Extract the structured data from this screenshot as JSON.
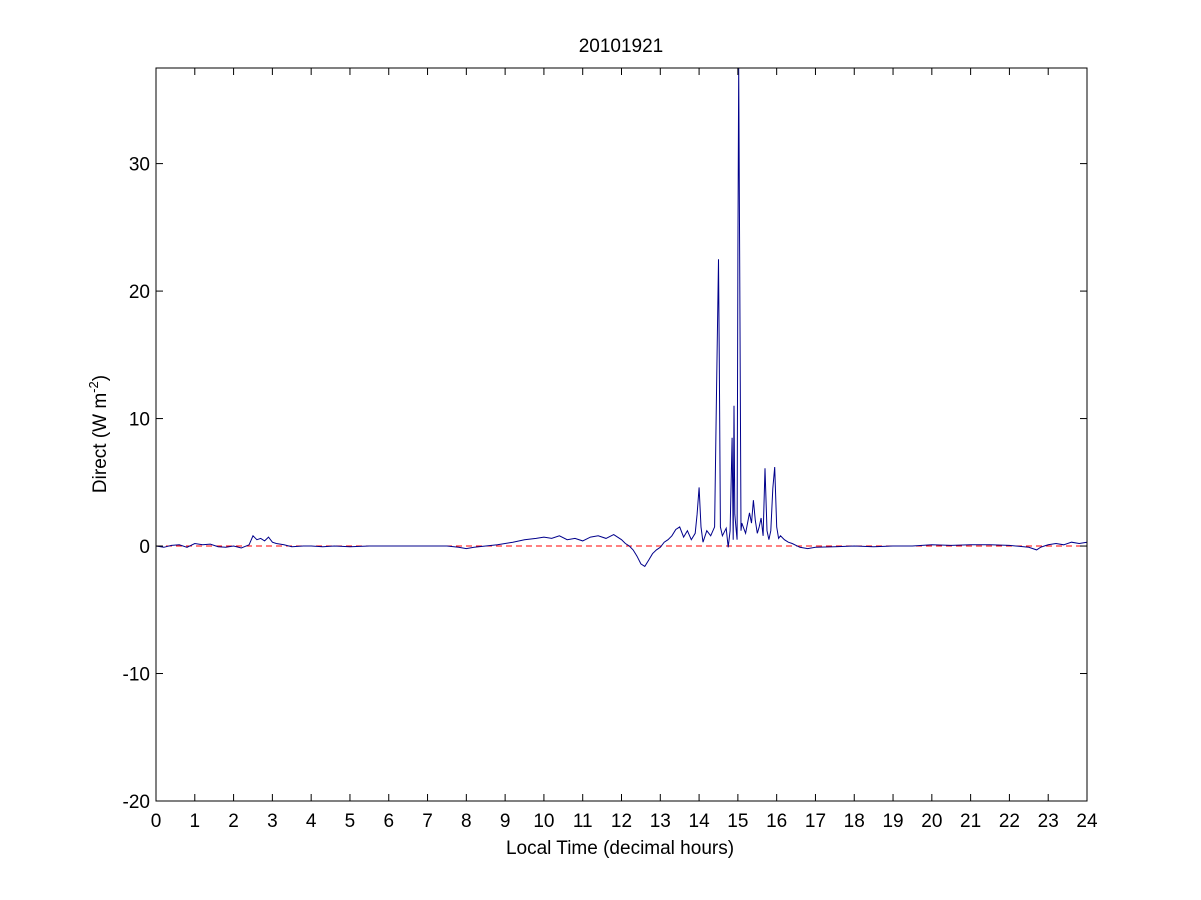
{
  "chart_data": {
    "type": "line",
    "title": "20101921",
    "xlabel": "Local Time (decimal hours)",
    "ylabel": "Direct (W m",
    "ylabel_superscript": "-2",
    "ylabel_suffix": ")",
    "xlim": [
      0,
      24
    ],
    "ylim": [
      -20,
      37.5
    ],
    "xticks": [
      0,
      1,
      2,
      3,
      4,
      5,
      6,
      7,
      8,
      9,
      10,
      11,
      12,
      13,
      14,
      15,
      16,
      17,
      18,
      19,
      20,
      21,
      22,
      23,
      24
    ],
    "yticks": [
      -20,
      -10,
      0,
      10,
      20,
      30
    ],
    "grid": false,
    "reference_line": {
      "y": 0,
      "style": "dashed",
      "color": "#ff0000"
    },
    "series": [
      {
        "color": "#00008b",
        "x": [
          0,
          0.2,
          0.4,
          0.6,
          0.8,
          1.0,
          1.2,
          1.4,
          1.6,
          1.8,
          2.0,
          2.2,
          2.4,
          2.5,
          2.6,
          2.7,
          2.8,
          2.9,
          3.0,
          3.1,
          3.3,
          3.5,
          3.8,
          4.0,
          4.3,
          4.6,
          5.0,
          5.5,
          6.0,
          6.5,
          7.0,
          7.5,
          7.8,
          8.0,
          8.2,
          8.5,
          8.8,
          9.0,
          9.2,
          9.5,
          9.8,
          10.0,
          10.2,
          10.4,
          10.6,
          10.8,
          11.0,
          11.2,
          11.4,
          11.6,
          11.8,
          12.0,
          12.1,
          12.2,
          12.3,
          12.4,
          12.5,
          12.6,
          12.7,
          12.8,
          12.9,
          13.0,
          13.1,
          13.2,
          13.3,
          13.4,
          13.5,
          13.6,
          13.7,
          13.8,
          13.9,
          13.95,
          14.0,
          14.05,
          14.1,
          14.2,
          14.3,
          14.4,
          14.45,
          14.5,
          14.52,
          14.55,
          14.6,
          14.7,
          14.75,
          14.8,
          14.85,
          14.88,
          14.9,
          14.92,
          14.95,
          14.98,
          15.0,
          15.02,
          15.05,
          15.08,
          15.1,
          15.2,
          15.3,
          15.35,
          15.4,
          15.45,
          15.5,
          15.55,
          15.6,
          15.65,
          15.7,
          15.75,
          15.8,
          15.85,
          15.9,
          15.95,
          16.0,
          16.05,
          16.1,
          16.2,
          16.3,
          16.4,
          16.6,
          16.8,
          17.0,
          17.5,
          18.0,
          18.5,
          19.0,
          19.5,
          20.0,
          20.5,
          21.0,
          21.5,
          22.0,
          22.5,
          22.7,
          22.8,
          22.9,
          23.0,
          23.2,
          23.4,
          23.6,
          23.8,
          24.0
        ],
        "y": [
          0.0,
          -0.1,
          0.05,
          0.1,
          -0.1,
          0.2,
          0.1,
          0.15,
          -0.05,
          -0.1,
          0.0,
          -0.15,
          0.1,
          0.8,
          0.5,
          0.6,
          0.4,
          0.7,
          0.3,
          0.2,
          0.1,
          -0.05,
          0.0,
          0.0,
          -0.05,
          0.0,
          -0.05,
          0.0,
          0.0,
          0.0,
          0.0,
          0.0,
          -0.1,
          -0.2,
          -0.1,
          0.0,
          0.1,
          0.2,
          0.3,
          0.5,
          0.6,
          0.7,
          0.6,
          0.8,
          0.5,
          0.6,
          0.4,
          0.7,
          0.8,
          0.6,
          0.9,
          0.5,
          0.2,
          0.0,
          -0.3,
          -0.8,
          -1.4,
          -1.6,
          -1.1,
          -0.6,
          -0.3,
          -0.1,
          0.3,
          0.5,
          0.8,
          1.3,
          1.5,
          0.7,
          1.2,
          0.5,
          1.0,
          2.5,
          4.6,
          1.5,
          0.3,
          1.2,
          0.8,
          1.5,
          12.0,
          22.5,
          14.5,
          1.5,
          0.8,
          1.4,
          -0.1,
          1.2,
          8.5,
          0.5,
          11.0,
          2.5,
          1.5,
          0.5,
          23.0,
          37.5,
          20.5,
          1.2,
          1.8,
          1.0,
          2.6,
          1.8,
          3.6,
          2.0,
          1.0,
          1.5,
          2.2,
          0.8,
          6.1,
          1.2,
          0.5,
          1.2,
          4.5,
          6.2,
          1.5,
          0.6,
          0.8,
          0.5,
          0.3,
          0.2,
          -0.1,
          -0.2,
          -0.1,
          -0.05,
          0.0,
          -0.05,
          0.0,
          0.0,
          0.1,
          0.05,
          0.1,
          0.1,
          0.05,
          -0.1,
          -0.3,
          -0.1,
          0.0,
          0.1,
          0.2,
          0.1,
          0.3,
          0.2,
          0.3
        ]
      }
    ]
  }
}
